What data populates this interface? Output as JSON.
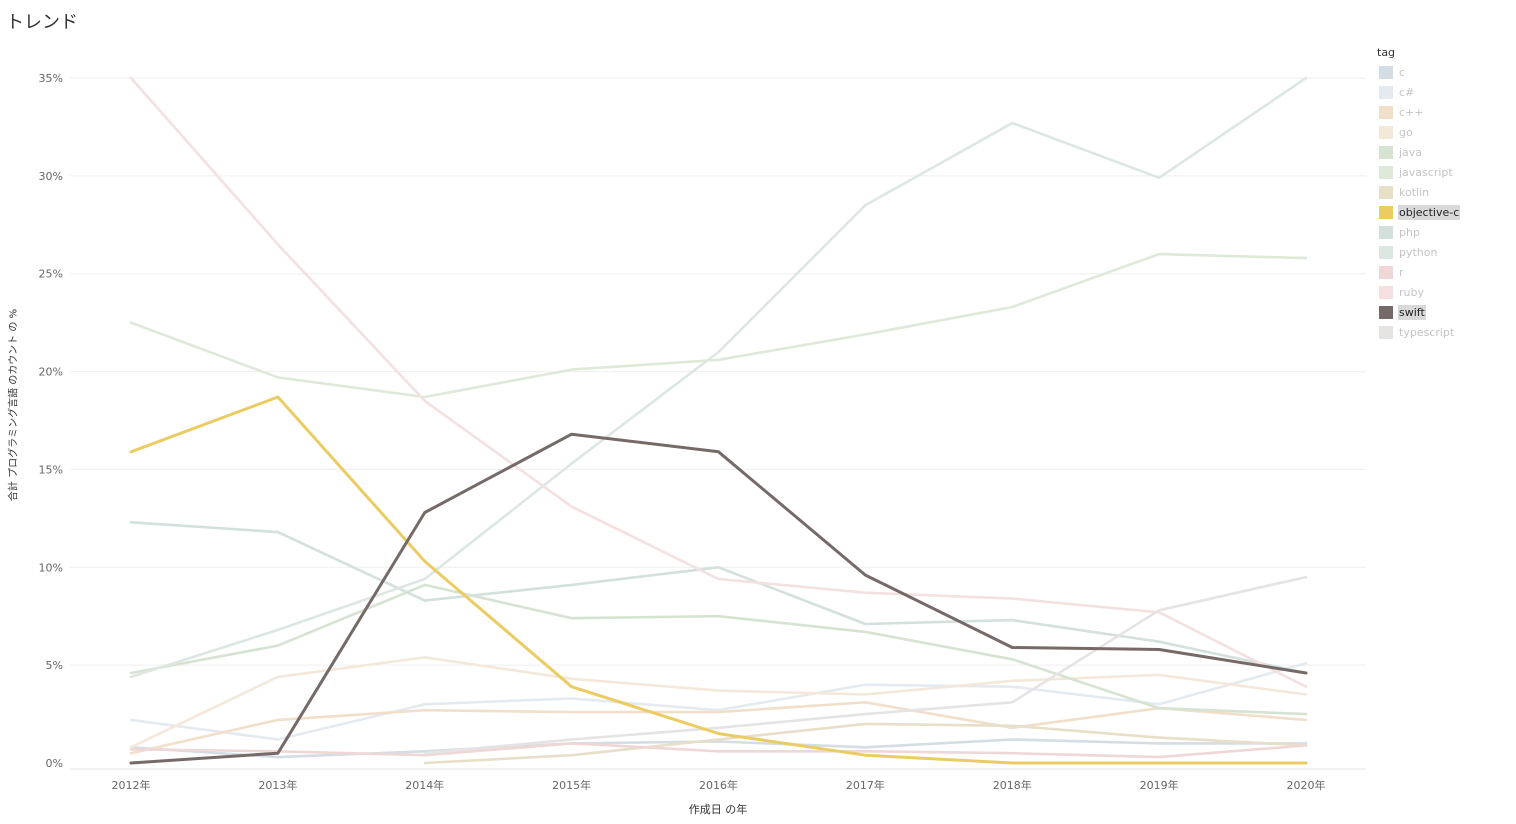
{
  "page": {
    "title": "トレンド"
  },
  "chart_data": {
    "type": "line",
    "title": "トレンド",
    "xlabel": "作成日 の年",
    "ylabel": "合計 プログラミング言語 のカウント の %",
    "x": [
      "2012年",
      "2013年",
      "2014年",
      "2015年",
      "2016年",
      "2017年",
      "2018年",
      "2019年",
      "2020年"
    ],
    "ylim": [
      0,
      35
    ],
    "yticks": [
      0,
      5,
      10,
      15,
      20,
      25,
      30,
      35
    ],
    "ytick_labels": [
      "0%",
      "5%",
      "10%",
      "15%",
      "20%",
      "25%",
      "30%",
      "35%"
    ],
    "grid": "horizontal",
    "legend_title": "tag",
    "legend_position": "right",
    "highlighted": [
      "objective-c",
      "swift"
    ],
    "series": [
      {
        "name": "c",
        "color": "#d4dde3",
        "values": [
          0.8,
          0.3,
          0.6,
          1.0,
          1.1,
          0.8,
          1.2,
          1.0,
          1.0
        ]
      },
      {
        "name": "c#",
        "color": "#e4eaf0",
        "values": [
          2.2,
          1.2,
          3.0,
          3.3,
          2.7,
          4.0,
          3.9,
          3.0,
          5.1
        ]
      },
      {
        "name": "c++",
        "color": "#f1dfca",
        "values": [
          0.5,
          2.2,
          2.7,
          2.6,
          2.6,
          3.1,
          1.8,
          2.8,
          2.2
        ]
      },
      {
        "name": "go",
        "color": "#f4e8da",
        "values": [
          0.8,
          4.4,
          5.4,
          4.3,
          3.7,
          3.5,
          4.2,
          4.5,
          3.5
        ]
      },
      {
        "name": "java",
        "color": "#d7e3d2",
        "values": [
          4.6,
          6.0,
          9.1,
          7.4,
          7.5,
          6.7,
          5.3,
          2.8,
          2.5
        ]
      },
      {
        "name": "javascript",
        "color": "#dfe9da",
        "values": [
          22.5,
          19.7,
          18.7,
          20.1,
          20.6,
          21.9,
          23.3,
          26.0,
          25.8
        ]
      },
      {
        "name": "kotlin",
        "color": "#e8dfc8",
        "values": [
          null,
          null,
          0.0,
          0.4,
          1.2,
          2.0,
          1.9,
          1.3,
          0.9
        ]
      },
      {
        "name": "objective-c",
        "color": "#eacc63",
        "values": [
          15.9,
          18.7,
          10.3,
          3.9,
          1.5,
          0.4,
          0.0,
          0.0,
          0.0
        ]
      },
      {
        "name": "php",
        "color": "#d3e0dc",
        "values": [
          12.3,
          11.8,
          8.3,
          9.1,
          10.0,
          7.1,
          7.3,
          6.2,
          4.6
        ]
      },
      {
        "name": "python",
        "color": "#dde7e2",
        "values": [
          4.4,
          6.8,
          9.4,
          15.3,
          21.0,
          28.5,
          32.7,
          29.9,
          35.0
        ]
      },
      {
        "name": "r",
        "color": "#efd7d7",
        "values": [
          0.7,
          0.6,
          0.4,
          1.0,
          0.6,
          0.6,
          0.5,
          0.3,
          0.9
        ]
      },
      {
        "name": "ruby",
        "color": "#f4e0e0",
        "values": [
          35.0,
          26.5,
          18.5,
          13.1,
          9.4,
          8.7,
          8.4,
          7.7,
          3.9
        ]
      },
      {
        "name": "swift",
        "color": "#766a68",
        "values": [
          0.0,
          0.5,
          12.8,
          16.8,
          15.9,
          9.6,
          5.9,
          5.8,
          4.6
        ]
      },
      {
        "name": "typescript",
        "color": "#e6e3e3",
        "values": [
          null,
          null,
          0.5,
          1.2,
          1.8,
          2.5,
          3.1,
          7.8,
          9.5
        ]
      }
    ]
  }
}
